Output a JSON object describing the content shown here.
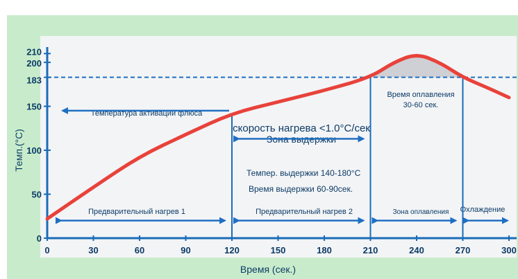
{
  "caption": "...",
  "colors": {
    "frame_background": "#c8eccb",
    "plot_background": "#f3f4f6",
    "curve": "#e8423a",
    "axis": "#1a6cb8",
    "arrow": "#1f6fc2",
    "dashed_line": "#1f6fc2",
    "text": "#0c3b66",
    "reflow_fill": "#cfcfd6"
  },
  "chart_data": {
    "type": "line",
    "title": "",
    "xlabel": "Время (сек.)",
    "ylabel": "Темп.(°C)",
    "xlim": [
      0,
      300
    ],
    "ylim": [
      0,
      230
    ],
    "x_ticks": [
      0,
      30,
      60,
      90,
      120,
      150,
      180,
      210,
      240,
      270,
      300
    ],
    "y_ticks": [
      0,
      50,
      100,
      150,
      183,
      200,
      210
    ],
    "grid": false,
    "legend": "none",
    "series": [
      {
        "x": [
          0,
          30,
          60,
          90,
          120,
          150,
          180,
          210,
          225,
          240,
          255,
          270,
          285,
          300
        ],
        "values": [
          22,
          58,
          93,
          118,
          142,
          155,
          168,
          183,
          200,
          210,
          200,
          183,
          172,
          160
        ]
      }
    ],
    "reference_lines": [
      {
        "axis": "y",
        "value": 183,
        "style": "dashed"
      }
    ],
    "vertical_lines": [
      120,
      210,
      270
    ],
    "annotations": {
      "flux_activation": "Температура активации флюса",
      "heating_rate": "скорость нагрева <1.0°С/сек",
      "soak_zone": "Зона выдержки",
      "soak_temp": "Темпер. выдержки 140-180°С",
      "soak_time": "Время выдержки 60-90сек.",
      "reflow_time_line1": "Время оплавления",
      "reflow_time_line2": "30-60 сек.",
      "preheat_1": "Предварительный нагрев 1",
      "preheat_2": "Предварительный нагрев 2",
      "reflow_zone": "Зона оплавления",
      "cooling": "Охлаждение"
    }
  }
}
